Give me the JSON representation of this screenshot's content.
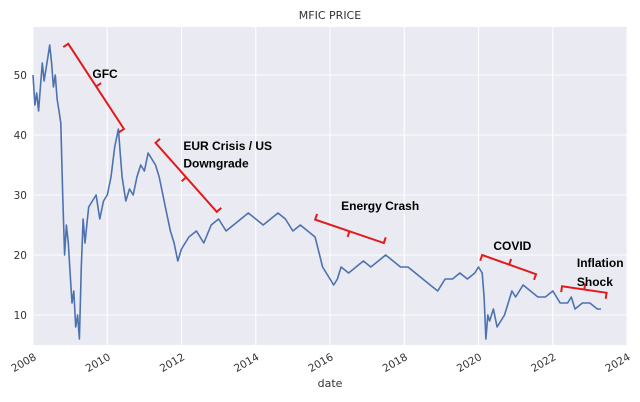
{
  "chart_data": {
    "type": "line",
    "title": "MFIC PRICE",
    "xlabel": "date",
    "ylabel": "",
    "xlim": [
      2008,
      2024
    ],
    "ylim": [
      5,
      58
    ],
    "x_ticks": [
      "2008",
      "2010",
      "2012",
      "2014",
      "2016",
      "2018",
      "2020",
      "2022",
      "2024"
    ],
    "y_ticks": [
      "10",
      "20",
      "30",
      "40",
      "50"
    ],
    "grid": true,
    "background": "#eaeaf2",
    "line_color": "#4c72b0",
    "annotation_color": "#e31a1c",
    "series": [
      {
        "name": "MFIC",
        "x": [
          2008.0,
          2008.05,
          2008.1,
          2008.15,
          2008.2,
          2008.25,
          2008.3,
          2008.35,
          2008.4,
          2008.45,
          2008.5,
          2008.55,
          2008.6,
          2008.65,
          2008.7,
          2008.75,
          2008.8,
          2008.85,
          2008.9,
          2008.95,
          2009.0,
          2009.05,
          2009.1,
          2009.15,
          2009.2,
          2009.25,
          2009.3,
          2009.35,
          2009.4,
          2009.45,
          2009.5,
          2009.6,
          2009.7,
          2009.8,
          2009.9,
          2010.0,
          2010.1,
          2010.2,
          2010.3,
          2010.35,
          2010.4,
          2010.5,
          2010.6,
          2010.7,
          2010.8,
          2010.9,
          2011.0,
          2011.1,
          2011.2,
          2011.3,
          2011.4,
          2011.5,
          2011.6,
          2011.7,
          2011.8,
          2011.9,
          2012.0,
          2012.2,
          2012.4,
          2012.6,
          2012.8,
          2013.0,
          2013.2,
          2013.4,
          2013.6,
          2013.8,
          2014.0,
          2014.2,
          2014.4,
          2014.6,
          2014.8,
          2015.0,
          2015.2,
          2015.4,
          2015.6,
          2015.8,
          2016.0,
          2016.1,
          2016.2,
          2016.3,
          2016.5,
          2016.7,
          2016.9,
          2017.1,
          2017.3,
          2017.5,
          2017.7,
          2017.9,
          2018.1,
          2018.3,
          2018.5,
          2018.7,
          2018.9,
          2019.1,
          2019.3,
          2019.5,
          2019.7,
          2019.9,
          2020.0,
          2020.1,
          2020.15,
          2020.2,
          2020.25,
          2020.3,
          2020.4,
          2020.5,
          2020.7,
          2020.9,
          2021.0,
          2021.2,
          2021.4,
          2021.6,
          2021.8,
          2022.0,
          2022.2,
          2022.4,
          2022.5,
          2022.6,
          2022.8,
          2023.0,
          2023.2,
          2023.3
        ],
        "values": [
          50,
          45,
          47,
          44,
          48,
          52,
          49,
          51,
          53,
          55,
          52,
          48,
          50,
          46,
          44,
          42,
          30,
          20,
          25,
          22,
          17,
          12,
          14,
          8,
          10,
          6,
          18,
          26,
          22,
          25,
          28,
          29,
          30,
          26,
          29,
          30,
          33,
          38,
          41,
          37,
          33,
          29,
          31,
          30,
          33,
          35,
          34,
          37,
          36,
          35,
          33,
          30,
          27,
          24,
          22,
          19,
          21,
          23,
          24,
          22,
          25,
          26,
          24,
          25,
          26,
          27,
          26,
          25,
          26,
          27,
          26,
          24,
          25,
          24,
          23,
          18,
          16,
          15,
          16,
          18,
          17,
          18,
          19,
          18,
          19,
          20,
          19,
          18,
          18,
          17,
          16,
          15,
          14,
          16,
          16,
          17,
          16,
          17,
          18,
          17,
          13,
          6,
          10,
          9,
          11,
          8,
          10,
          14,
          13,
          15,
          14,
          13,
          13,
          14,
          12,
          12,
          13,
          11,
          12,
          12,
          11,
          11
        ]
      }
    ],
    "annotations": [
      {
        "label": "GFC",
        "x": 2009.6,
        "y": 49.5
      },
      {
        "label": "EUR Crisis / US",
        "x": 2012.05,
        "y": 37.5
      },
      {
        "label": "Downgrade",
        "x": 2012.05,
        "y": 34.6
      },
      {
        "label": "Energy Crash",
        "x": 2016.3,
        "y": 27.5
      },
      {
        "label": "COVID",
        "x": 2020.4,
        "y": 20.8
      },
      {
        "label": "Inflation",
        "x": 2022.65,
        "y": 18.0
      },
      {
        "label": "Shock",
        "x": 2022.65,
        "y": 14.8
      }
    ],
    "brackets": [
      {
        "name": "gfc",
        "x1": 2008.95,
        "y1": 55.2,
        "x2": 2010.45,
        "y2": 41.0,
        "label_x": 2009.7,
        "label_y": 48.1
      },
      {
        "name": "eur-crisis",
        "x1": 2011.3,
        "y1": 38.7,
        "x2": 2012.95,
        "y2": 27.2,
        "label_x": 2012.1,
        "label_y": 32.9
      },
      {
        "name": "energy-crash",
        "x1": 2015.6,
        "y1": 25.9,
        "x2": 2017.45,
        "y2": 22.0,
        "label_x": 2016.5,
        "label_y": 23.9
      },
      {
        "name": "covid",
        "x1": 2020.1,
        "y1": 20.0,
        "x2": 2021.55,
        "y2": 16.8,
        "label_x": 2020.8,
        "label_y": 18.5
      },
      {
        "name": "inflation-shock",
        "x1": 2022.25,
        "y1": 14.8,
        "x2": 2023.45,
        "y2": 13.7,
        "label_x": 2022.8,
        "label_y": 14.3
      }
    ]
  }
}
